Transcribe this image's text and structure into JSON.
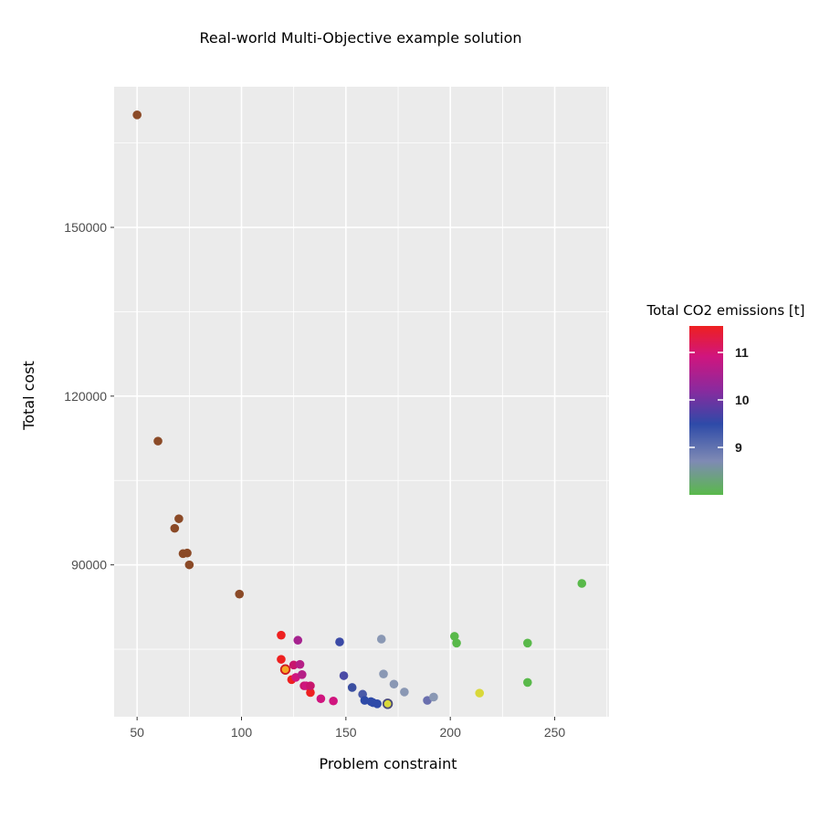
{
  "chart_data": {
    "type": "scatter",
    "title": "Real-world Multi-Objective example solution",
    "xlabel": "Problem constraint",
    "ylabel": "Total cost",
    "xlim": [
      39,
      276
    ],
    "ylim": [
      63000,
      175000
    ],
    "x_ticks": [
      50,
      100,
      150,
      200,
      250
    ],
    "y_ticks": [
      90000,
      120000,
      150000
    ],
    "y_tick_labels": [
      "90000",
      "120000",
      "150000"
    ],
    "grid": true,
    "legend": {
      "title": "Total CO2 emissions [t]",
      "placement": "right",
      "colorbar_ticks": [
        "11",
        "10",
        "9"
      ],
      "colors": [
        "#ee2020",
        "#d0157e",
        "#8a2a9e",
        "#2e4aa8",
        "#7f8ab4",
        "#59b94a"
      ]
    },
    "dominated_color": "#8b4a27",
    "highlight_colors": {
      "orange": "#f5a623",
      "yellow": "#d9d83a"
    },
    "points": [
      {
        "x": 50,
        "y": 170000,
        "c": "#8b4a27"
      },
      {
        "x": 60,
        "y": 112000,
        "c": "#8b4a27"
      },
      {
        "x": 68,
        "y": 96500,
        "c": "#8b4a27"
      },
      {
        "x": 70,
        "y": 98200,
        "c": "#8b4a27"
      },
      {
        "x": 72,
        "y": 92000,
        "c": "#8b4a27"
      },
      {
        "x": 74,
        "y": 92100,
        "c": "#8b4a27"
      },
      {
        "x": 75,
        "y": 90000,
        "c": "#8b4a27"
      },
      {
        "x": 99,
        "y": 84800,
        "c": "#8b4a27"
      },
      {
        "x": 119,
        "y": 77500,
        "c": "#ee2020"
      },
      {
        "x": 119,
        "y": 73200,
        "c": "#ee2020"
      },
      {
        "x": 121,
        "y": 71400,
        "c": "#ee2020",
        "h": "orange"
      },
      {
        "x": 124,
        "y": 69600,
        "c": "#ee2020"
      },
      {
        "x": 125,
        "y": 72200,
        "c": "#c8166d"
      },
      {
        "x": 126,
        "y": 70000,
        "c": "#d0157e"
      },
      {
        "x": 127,
        "y": 76600,
        "c": "#a6238f"
      },
      {
        "x": 128,
        "y": 72300,
        "c": "#b51f86"
      },
      {
        "x": 129,
        "y": 70500,
        "c": "#b51f86"
      },
      {
        "x": 130,
        "y": 68500,
        "c": "#c8166d"
      },
      {
        "x": 131,
        "y": 68500,
        "c": "#d0157e"
      },
      {
        "x": 133,
        "y": 67300,
        "c": "#ee2020"
      },
      {
        "x": 133,
        "y": 68500,
        "c": "#c8166d"
      },
      {
        "x": 138,
        "y": 66200,
        "c": "#d0157e"
      },
      {
        "x": 144,
        "y": 65800,
        "c": "#d0157e"
      },
      {
        "x": 147,
        "y": 76300,
        "c": "#3b4aa6"
      },
      {
        "x": 149,
        "y": 70300,
        "c": "#4a4aa6"
      },
      {
        "x": 153,
        "y": 68200,
        "c": "#3a4ea0"
      },
      {
        "x": 158,
        "y": 67000,
        "c": "#4a5aa8"
      },
      {
        "x": 159,
        "y": 65900,
        "c": "#2e4aa8"
      },
      {
        "x": 162,
        "y": 65700,
        "c": "#2e4aa8"
      },
      {
        "x": 163,
        "y": 65500,
        "c": "#2e4aa8"
      },
      {
        "x": 165,
        "y": 65300,
        "c": "#2e4aa8"
      },
      {
        "x": 167,
        "y": 76800,
        "c": "#8a98b4"
      },
      {
        "x": 168,
        "y": 70600,
        "c": "#8a98b4"
      },
      {
        "x": 170,
        "y": 65300,
        "c": "#6f6f9f",
        "h": "yellow"
      },
      {
        "x": 173,
        "y": 68800,
        "c": "#8a98b4"
      },
      {
        "x": 178,
        "y": 67400,
        "c": "#8a98b4"
      },
      {
        "x": 189,
        "y": 65900,
        "c": "#6a6fae"
      },
      {
        "x": 192,
        "y": 66500,
        "c": "#8a98b4"
      },
      {
        "x": 202,
        "y": 77300,
        "c": "#59b94a"
      },
      {
        "x": 203,
        "y": 76100,
        "c": "#59b94a"
      },
      {
        "x": 214,
        "y": 67200,
        "c": "#d9d83a"
      },
      {
        "x": 237,
        "y": 76100,
        "c": "#59b94a"
      },
      {
        "x": 237,
        "y": 69100,
        "c": "#59b94a"
      },
      {
        "x": 263,
        "y": 86700,
        "c": "#59b94a"
      }
    ]
  }
}
